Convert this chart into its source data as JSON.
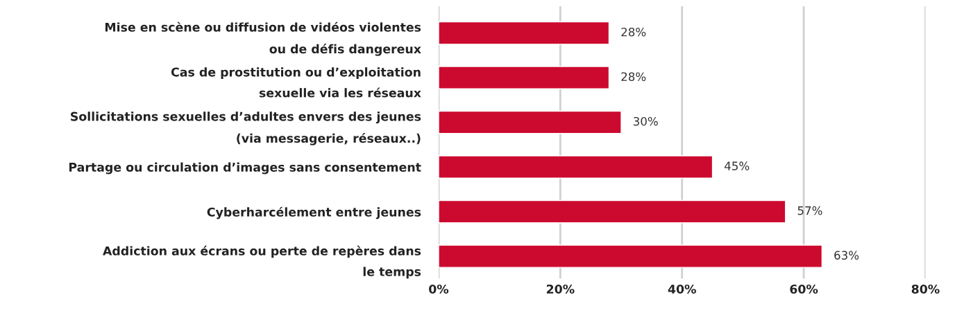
{
  "chart_data": {
    "type": "bar",
    "orientation": "horizontal",
    "categories": [
      "Mise en scène ou diffusion de vidéos violentes\nou de défis dangereux",
      "Cas de prostitution ou d’exploitation\nsexuelle via les réseaux",
      "Sollicitations sexuelles d’adultes envers des jeunes\n(via messagerie, réseaux..)",
      "Partage ou circulation d’images sans consentement",
      "Cyberharcélement entre jeunes",
      "Addiction aux écrans ou perte de repères dans\nle temps"
    ],
    "values": [
      28,
      28,
      30,
      45,
      57,
      63
    ],
    "value_labels": [
      "28%",
      "28%",
      "30%",
      "45%",
      "57%",
      "63%"
    ],
    "color": "#cc0a2f",
    "xlim": [
      0,
      80
    ],
    "xticks": [
      {
        "value": 0,
        "label": "0%"
      },
      {
        "value": 20,
        "label": "20%"
      },
      {
        "value": 40,
        "label": "40%"
      },
      {
        "value": 60,
        "label": "60%"
      },
      {
        "value": 80,
        "label": "80%"
      }
    ],
    "grid": "x"
  }
}
